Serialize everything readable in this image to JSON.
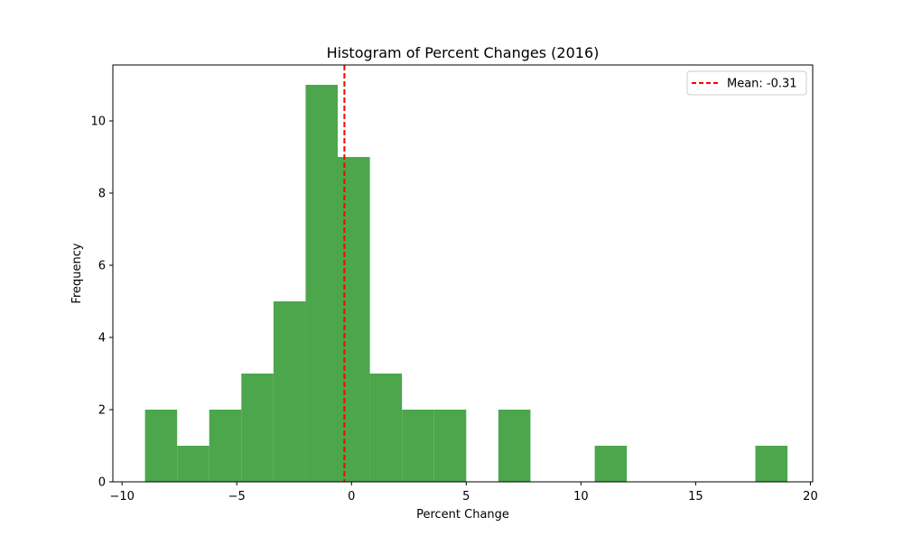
{
  "chart_data": {
    "type": "bar",
    "title": "Histogram of Percent Changes (2016)",
    "xlabel": "Percent Change",
    "ylabel": "Frequency",
    "xlim": [
      -10.4,
      20.1
    ],
    "ylim": [
      0,
      11.55
    ],
    "xticks": [
      -10,
      -5,
      0,
      5,
      10,
      15,
      20
    ],
    "xtick_labels": [
      "−10",
      "−5",
      "0",
      "5",
      "10",
      "15",
      "20"
    ],
    "yticks": [
      0,
      2,
      4,
      6,
      8,
      10
    ],
    "ytick_labels": [
      "0",
      "2",
      "4",
      "6",
      "8",
      "10"
    ],
    "bin_edges": [
      -9.0,
      -7.6,
      -6.2,
      -4.8,
      -3.4,
      -2.0,
      -0.6,
      0.8,
      2.2,
      3.6,
      5.0,
      6.4,
      7.8,
      9.2,
      10.6,
      12.0,
      13.4,
      14.8,
      16.2,
      17.6,
      19.0
    ],
    "values": [
      2,
      1,
      2,
      3,
      5,
      11,
      9,
      3,
      2,
      2,
      0,
      2,
      0,
      0,
      1,
      0,
      0,
      0,
      0,
      1
    ],
    "bar_color": "#4ca64c",
    "mean": {
      "value": -0.31,
      "label": "Mean: -0.31",
      "color": "#ff0000",
      "style": "dashed"
    },
    "legend_position": "top-right",
    "grid": false
  }
}
